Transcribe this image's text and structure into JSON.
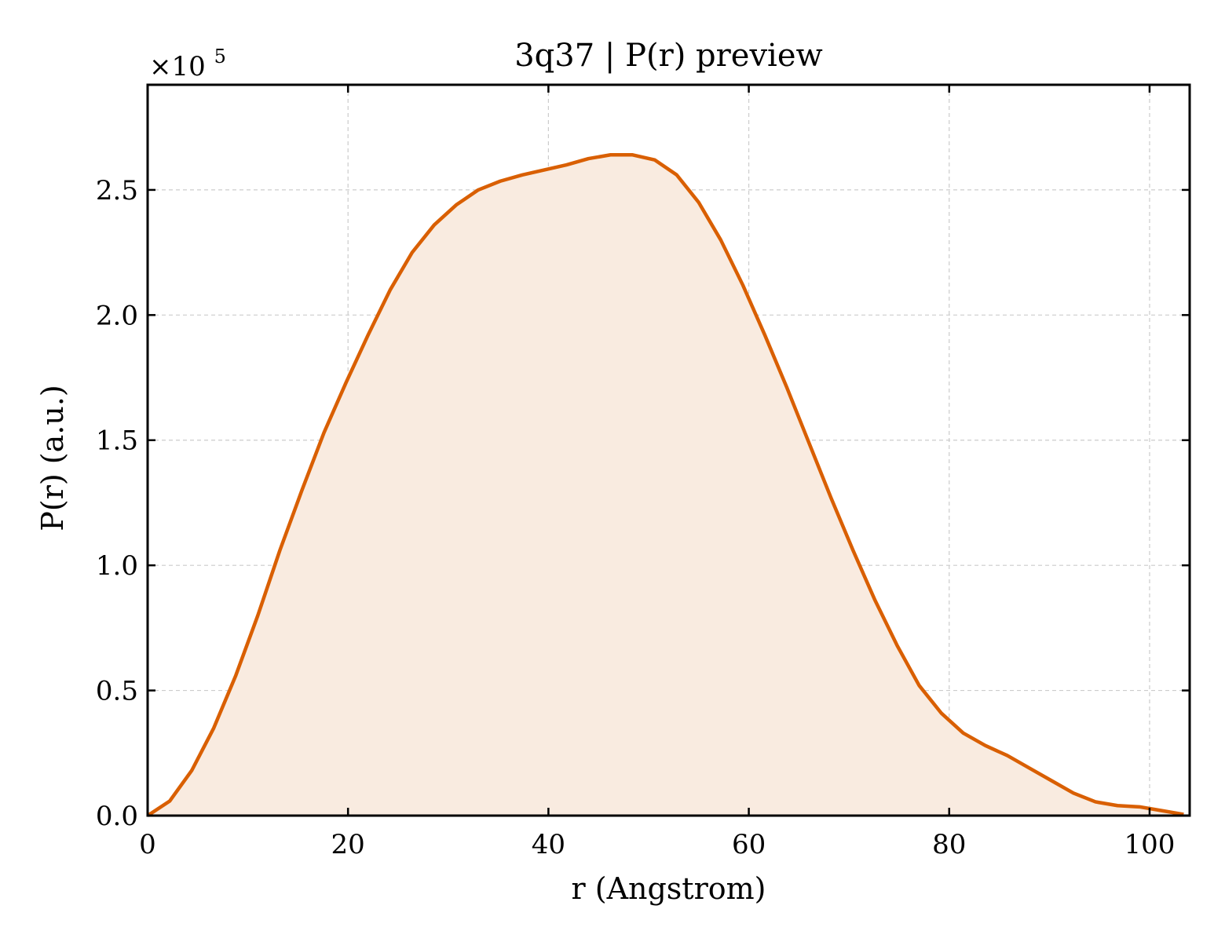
{
  "chart_data": {
    "type": "area",
    "title": "3q37 | P(r) preview",
    "xlabel": "r (Angstrom)",
    "ylabel": "P(r) (a.u.)",
    "y_multiplier_base": "×10",
    "y_multiplier_exponent": "5",
    "xlim": [
      0,
      104
    ],
    "ylim": [
      0,
      2.92
    ],
    "x_ticks": [
      0,
      20,
      40,
      60,
      80,
      100
    ],
    "y_ticks": [
      0.0,
      0.5,
      1.0,
      1.5,
      2.0,
      2.5
    ],
    "x_tick_labels": [
      "0",
      "20",
      "40",
      "60",
      "80",
      "100"
    ],
    "y_tick_labels": [
      "0.0",
      "0.5",
      "1.0",
      "1.5",
      "2.0",
      "2.5"
    ],
    "grid": true,
    "line_color": "#d95f02",
    "fill_color": "#f9ebe0",
    "series": [
      {
        "x": [
          0.0,
          2.2,
          4.4,
          6.6,
          8.8,
          11.0,
          13.2,
          15.4,
          17.6,
          19.8,
          22.0,
          24.2,
          26.4,
          28.6,
          30.8,
          33.0,
          35.2,
          37.4,
          39.6,
          41.8,
          44.0,
          46.2,
          48.4,
          50.6,
          52.8,
          55.0,
          57.2,
          59.4,
          61.6,
          63.8,
          66.0,
          68.2,
          70.4,
          72.6,
          74.8,
          77.0,
          79.2,
          81.4,
          83.6,
          85.8,
          88.0,
          90.2,
          92.4,
          94.6,
          96.8,
          99.0,
          101.2,
          103.4
        ],
        "values": [
          0.0,
          0.058,
          0.18,
          0.35,
          0.56,
          0.8,
          1.06,
          1.3,
          1.53,
          1.73,
          1.92,
          2.1,
          2.25,
          2.36,
          2.44,
          2.5,
          2.535,
          2.56,
          2.58,
          2.6,
          2.625,
          2.64,
          2.64,
          2.62,
          2.56,
          2.45,
          2.3,
          2.12,
          1.92,
          1.71,
          1.49,
          1.27,
          1.06,
          0.86,
          0.68,
          0.52,
          0.41,
          0.33,
          0.28,
          0.24,
          0.19,
          0.14,
          0.09,
          0.055,
          0.04,
          0.035,
          0.02,
          0.005
        ]
      }
    ]
  }
}
